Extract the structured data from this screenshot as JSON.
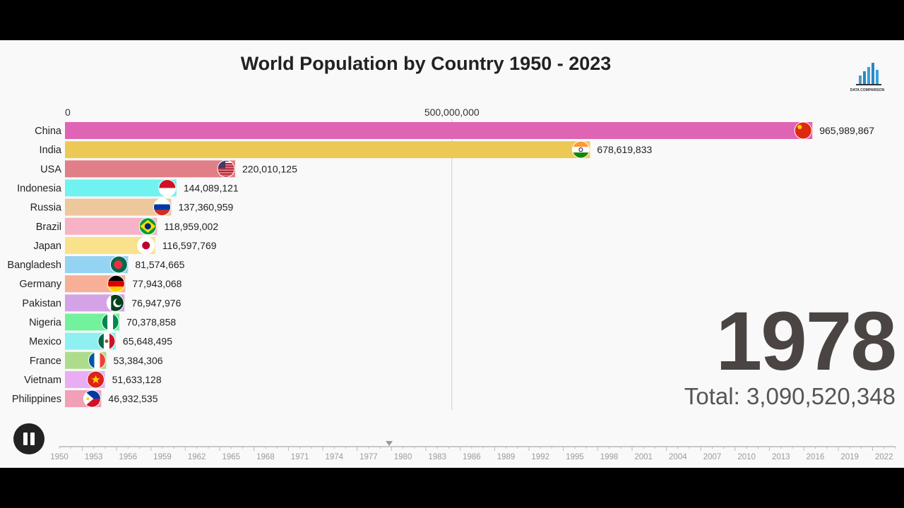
{
  "title": "World Population by Country 1950 - 2023",
  "logo_text": "DATA COMPARISON",
  "year": "1978",
  "total": "Total: 3,090,520,348",
  "colors": {
    "background": "#f9f9f9",
    "text": "#222222",
    "year": "#4a4442"
  },
  "chart_data": {
    "type": "bar",
    "orientation": "horizontal",
    "title": "World Population by Country 1950 - 2023",
    "x_ticks": [
      0,
      500000000
    ],
    "x_tick_labels": [
      "0",
      "500,000,000"
    ],
    "xlim": [
      0,
      1000000000
    ],
    "grid": true,
    "categories": [
      "China",
      "India",
      "USA",
      "Indonesia",
      "Russia",
      "Brazil",
      "Japan",
      "Bangladesh",
      "Germany",
      "Pakistan",
      "Nigeria",
      "Mexico",
      "France",
      "Vietnam",
      "Philippines"
    ],
    "values": [
      965989867,
      678619833,
      220010125,
      144089121,
      137360959,
      118959002,
      116597769,
      81574665,
      77943068,
      76947976,
      70378858,
      65648495,
      53384306,
      51633128,
      46932535
    ],
    "value_labels": [
      "965,989,867",
      "678,619,833",
      "220,010,125",
      "144,089,121",
      "137,360,959",
      "118,959,002",
      "116,597,769",
      "81,574,665",
      "77,943,068",
      "76,947,976",
      "70,378,858",
      "65,648,495",
      "53,384,306",
      "51,633,128",
      "46,932,535"
    ],
    "bar_colors": [
      "#df64b4",
      "#ecc955",
      "#e07f87",
      "#70f2f0",
      "#ecc89c",
      "#f7b2c5",
      "#fae28c",
      "#95d3f2",
      "#f7b097",
      "#d4a3e5",
      "#73f29e",
      "#8ef0f0",
      "#addc8d",
      "#e8adf2",
      "#f0a0b7"
    ],
    "flags": [
      "china-flag",
      "india-flag",
      "usa-flag",
      "indonesia-flag",
      "russia-flag",
      "brazil-flag",
      "japan-flag",
      "bangladesh-flag",
      "germany-flag",
      "pakistan-flag",
      "nigeria-flag",
      "mexico-flag",
      "france-flag",
      "vietnam-flag",
      "philippines-flag"
    ]
  },
  "timeline": {
    "labels": [
      "1950",
      "1953",
      "1956",
      "1959",
      "1962",
      "1965",
      "1968",
      "1971",
      "1974",
      "1977",
      "1980",
      "1983",
      "1986",
      "1989",
      "1992",
      "1995",
      "1998",
      "2001",
      "2004",
      "2007",
      "2010",
      "2013",
      "2016",
      "2019",
      "2022"
    ],
    "start": 1950,
    "end": 2023,
    "current": 1978.8
  }
}
